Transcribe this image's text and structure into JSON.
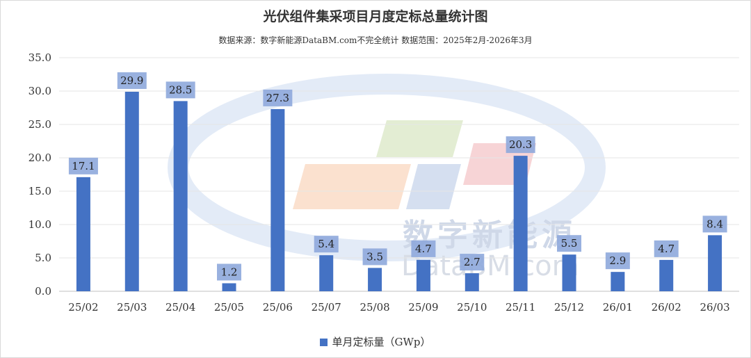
{
  "chart_data": {
    "type": "bar",
    "title": "光伏组件集采项目月度定标总量统计图",
    "subtitle": "数据来源：数字新能源DataBM.com不完全统计 数据范围：2025年2月-2026年3月",
    "categories": [
      "25/02",
      "25/03",
      "25/04",
      "25/05",
      "25/06",
      "25/07",
      "25/08",
      "25/09",
      "25/10",
      "25/11",
      "25/12",
      "26/01",
      "26/02",
      "26/03"
    ],
    "series": [
      {
        "name": "单月定标量（GWp）",
        "values": [
          17.1,
          29.9,
          28.5,
          1.2,
          27.3,
          5.4,
          3.5,
          4.7,
          2.7,
          20.3,
          5.5,
          2.9,
          4.7,
          8.4
        ]
      }
    ],
    "data_labels": [
      "17.1",
      "29.9",
      "28.5",
      "1.2",
      "27.3",
      "5.4",
      "3.5",
      "4.7",
      "2.7",
      "20.3",
      "5.5",
      "2.9",
      "4.7",
      "8.4"
    ],
    "yticks": [
      "0.0",
      "5.0",
      "10.0",
      "15.0",
      "20.0",
      "25.0",
      "30.0",
      "35.0"
    ],
    "ylim": [
      0,
      35
    ],
    "grid": true,
    "legend_position": "bottom",
    "colors": {
      "bar": "#4472C4",
      "label_box": "#8EA9DB",
      "grid": "#e6e6e6"
    },
    "watermark": {
      "cn": "数字新能源",
      "en": "DataBM.com"
    }
  }
}
